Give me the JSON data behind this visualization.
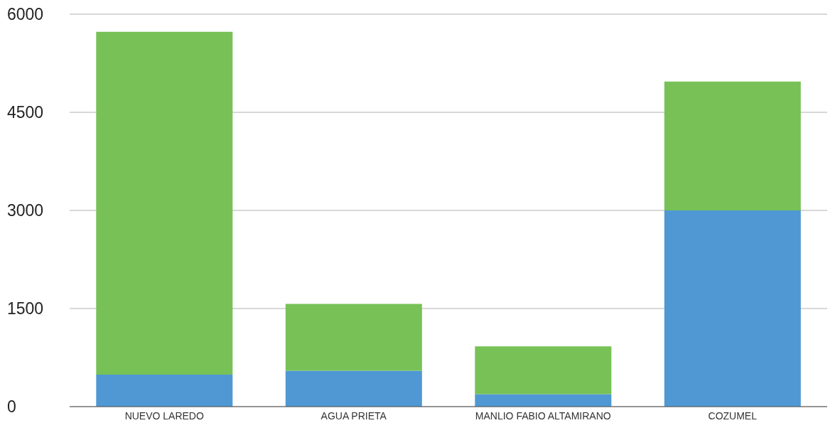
{
  "chart_data": {
    "type": "bar",
    "stacked": true,
    "categories": [
      "NUEVO LAREDO",
      "AGUA PRIETA",
      "MANLIO FABIO ALTAMIRANO",
      "COZUMEL"
    ],
    "series": [
      {
        "color": "#4f98d3",
        "values": [
          490,
          550,
          190,
          3000
        ]
      },
      {
        "color": "#77c157",
        "values": [
          5240,
          1020,
          730,
          1970
        ]
      }
    ],
    "ylim": [
      0,
      6000
    ],
    "yticks": [
      0,
      1500,
      3000,
      4500,
      6000
    ],
    "grid": "y"
  }
}
